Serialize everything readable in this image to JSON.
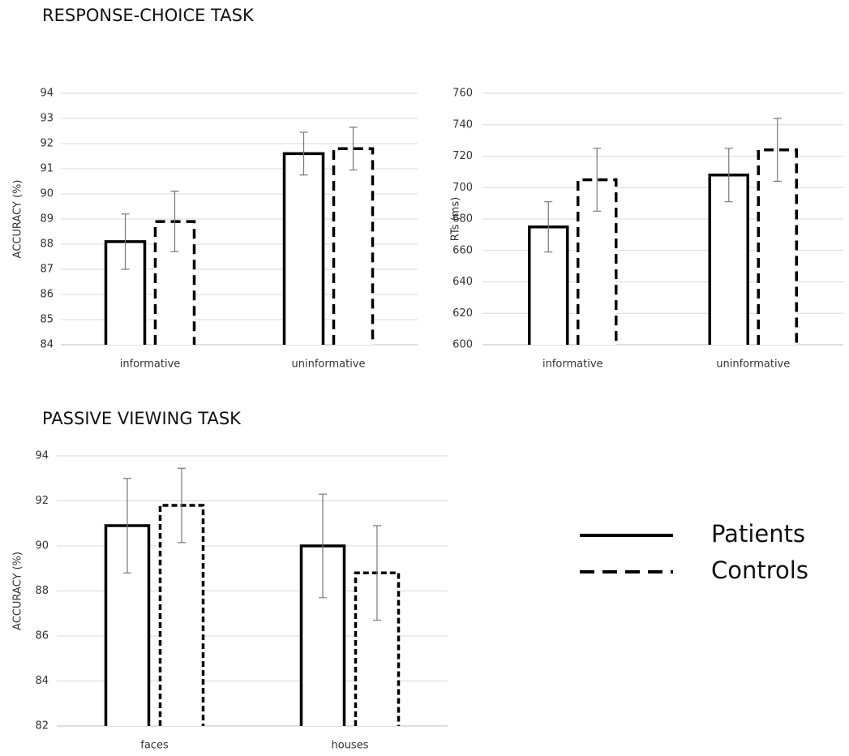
{
  "chart_data": [
    {
      "type": "bar",
      "title": "RESPONSE-CHOICE TASK",
      "y_label": "ACCURACY (%)",
      "categories": [
        "informative",
        "uninformative"
      ],
      "ylim": [
        84,
        94
      ],
      "yticks": [
        84,
        85,
        86,
        87,
        88,
        89,
        90,
        91,
        92,
        93,
        94
      ],
      "grid": true,
      "series": [
        {
          "color": "#000000",
          "dash": "solid",
          "values": [
            88.1,
            91.6
          ],
          "errors": [
            1.1,
            0.85
          ]
        },
        {
          "color": "#000000",
          "dash": "dashed",
          "values": [
            88.9,
            91.8
          ],
          "errors": [
            1.2,
            0.85
          ]
        }
      ]
    },
    {
      "type": "bar",
      "y_label": "RTs (ms)",
      "categories": [
        "informative",
        "uninformative"
      ],
      "ylim": [
        600,
        760
      ],
      "yticks": [
        600,
        620,
        640,
        660,
        680,
        700,
        720,
        740,
        760
      ],
      "grid": true,
      "series": [
        {
          "color": "#000000",
          "dash": "solid",
          "values": [
            675,
            708
          ],
          "errors": [
            16,
            17
          ]
        },
        {
          "color": "#000000",
          "dash": "dashed",
          "values": [
            705,
            724
          ],
          "errors": [
            20,
            20
          ]
        }
      ]
    },
    {
      "type": "bar",
      "title": "PASSIVE VIEWING TASK",
      "y_label": "ACCURACY (%)",
      "categories": [
        "faces",
        "houses"
      ],
      "ylim": [
        82,
        94
      ],
      "yticks": [
        82,
        84,
        86,
        88,
        90,
        92,
        94
      ],
      "grid": true,
      "series": [
        {
          "name": "Patients",
          "color": "#000000",
          "dash": "solid",
          "values": [
            90.9,
            90.0
          ],
          "errors": [
            2.1,
            2.3
          ]
        },
        {
          "name": "Controls",
          "color": "#000000",
          "dash": "dashed",
          "values": [
            91.8,
            88.8
          ],
          "errors": [
            1.65,
            2.1
          ]
        }
      ]
    }
  ]
}
